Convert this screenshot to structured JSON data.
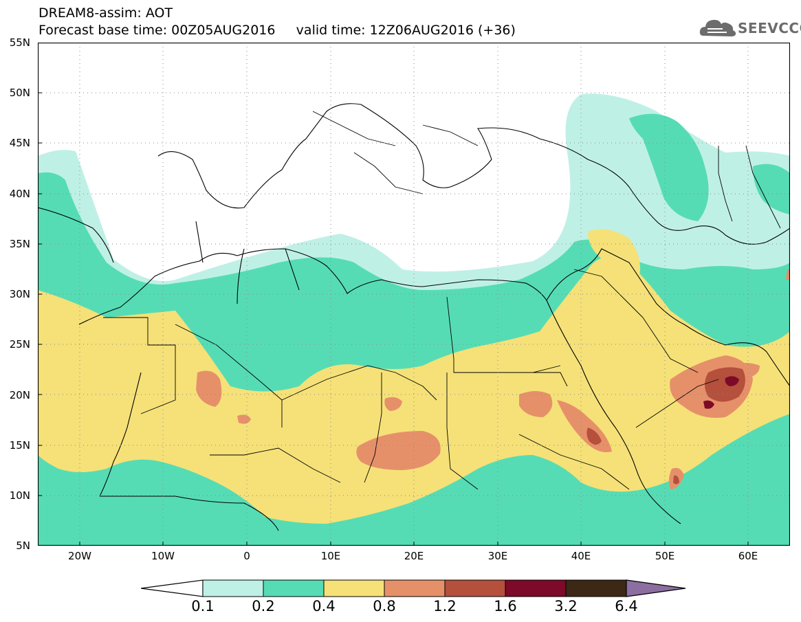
{
  "header": {
    "title_line1": "DREAM8-assim: AOT",
    "title_line2": "Forecast base time: 00Z05AUG2016     valid time: 12Z06AUG2016 (+36)"
  },
  "logo": {
    "text": "SEEVCCC",
    "icon": "cloud-icon",
    "color": "#6c6c6c"
  },
  "map": {
    "lon_range": [
      -25,
      65
    ],
    "lat_range": [
      5,
      55
    ],
    "lat_labels": [
      "55N",
      "50N",
      "45N",
      "40N",
      "35N",
      "30N",
      "25N",
      "20N",
      "15N",
      "10N",
      "5N"
    ],
    "lon_labels": [
      "20W",
      "10W",
      "0",
      "10E",
      "20E",
      "30E",
      "40E",
      "50E",
      "60E"
    ],
    "grid": true
  },
  "colorbar": {
    "labels": [
      "0.1",
      "0.2",
      "0.4",
      "0.8",
      "1.2",
      "1.6",
      "3.2",
      "6.4"
    ],
    "colors": [
      "#bff0e6",
      "#56dcb4",
      "#f5e178",
      "#e6906a",
      "#b4503c",
      "#7d0a28",
      "#3c2814",
      "#8c6ea0"
    ]
  }
}
